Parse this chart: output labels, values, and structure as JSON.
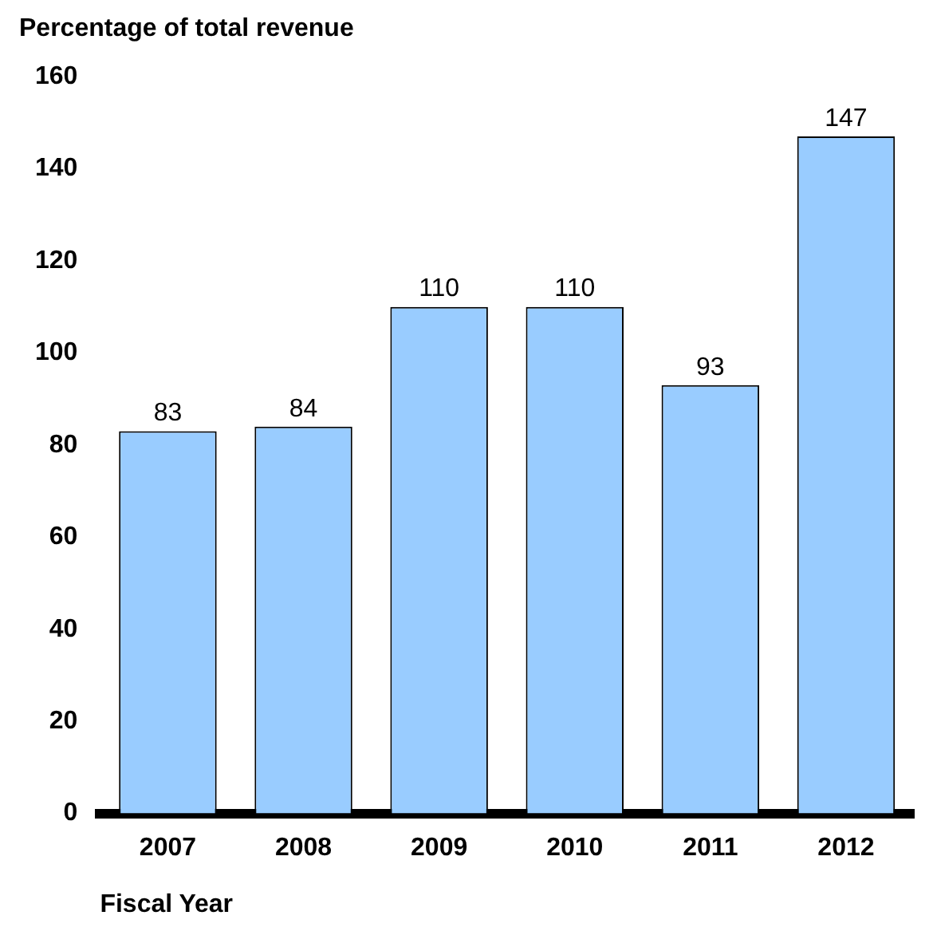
{
  "chart_data": {
    "type": "bar",
    "ylabel": "Percentage of total revenue",
    "xlabel": "Fiscal Year",
    "categories": [
      "2007",
      "2008",
      "2009",
      "2010",
      "2011",
      "2012"
    ],
    "values": [
      83,
      84,
      110,
      110,
      93,
      147
    ],
    "color": "#99ccff",
    "ylim": [
      0,
      160
    ],
    "yticks": [
      0,
      20,
      40,
      60,
      80,
      100,
      120,
      140,
      160
    ],
    "grid": false,
    "data_labels": true
  }
}
